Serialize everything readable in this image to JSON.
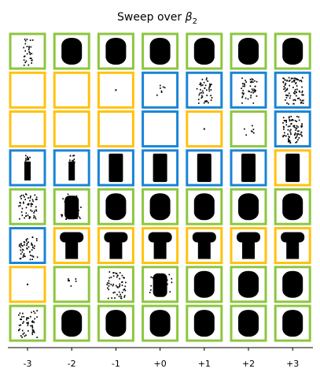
{
  "chart_data": {
    "type": "image-grid",
    "title": "Sweep over β₂",
    "title_prefix": "Sweep over ",
    "title_symbol": "β",
    "title_subscript": "2",
    "xlabel": "",
    "ylabel": "",
    "x_tick_labels": [
      "-3",
      "-2",
      "-1",
      "+0",
      "+1",
      "+2",
      "+3"
    ],
    "x": [
      -3,
      -2,
      -1,
      0,
      1,
      2,
      3
    ],
    "border_colors": {
      "green": "#8dc63f",
      "yellow": "#ffc20e",
      "blue": "#1a84d6"
    },
    "rows": [
      {
        "frames": [
          "green",
          "green",
          "green",
          "green",
          "green",
          "green",
          "green"
        ],
        "shapes": [
          "sparse-column",
          "dense-blob",
          "dense-blob",
          "dense-blob",
          "dense-blob",
          "dense-blob",
          "dense-blob"
        ]
      },
      {
        "frames": [
          "yellow",
          "yellow",
          "yellow",
          "blue",
          "blue",
          "blue",
          "blue"
        ],
        "shapes": [
          "empty",
          "empty",
          "dot",
          "scatter-small",
          "scatter-columns",
          "scatter-columns",
          "scatter-blob"
        ]
      },
      {
        "frames": [
          "yellow",
          "yellow",
          "yellow",
          "blue",
          "yellow",
          "green",
          "blue"
        ],
        "shapes": [
          "empty",
          "empty",
          "empty",
          "empty",
          "dot",
          "scatter-small",
          "scatter-blob"
        ]
      },
      {
        "frames": [
          "blue",
          "blue",
          "blue",
          "blue",
          "blue",
          "blue",
          "yellow"
        ],
        "shapes": [
          "thin-column",
          "thin-column",
          "column",
          "column",
          "column",
          "column",
          "column"
        ]
      },
      {
        "frames": [
          "green",
          "green",
          "green",
          "green",
          "green",
          "green",
          "green"
        ],
        "shapes": [
          "sparse-figure",
          "figure",
          "dense-blob",
          "dense-blob",
          "dense-blob",
          "dense-blob",
          "dense-blob"
        ]
      },
      {
        "frames": [
          "blue",
          "yellow",
          "yellow",
          "yellow",
          "yellow",
          "yellow",
          "yellow"
        ],
        "shapes": [
          "sparse-figure",
          "mushroom",
          "mushroom",
          "mushroom",
          "mushroom",
          "mushroom",
          "mushroom"
        ]
      },
      {
        "frames": [
          "yellow",
          "green",
          "green",
          "green",
          "green",
          "green",
          "green"
        ],
        "shapes": [
          "dot",
          "scatter-small",
          "sparse-figure",
          "figure",
          "dense-blob",
          "dense-blob",
          "dense-blob"
        ]
      },
      {
        "frames": [
          "green",
          "green",
          "green",
          "green",
          "green",
          "green",
          "green"
        ],
        "shapes": [
          "sparse-figure",
          "dense-blob",
          "dense-blob",
          "dense-blob",
          "dense-blob",
          "dense-blob",
          "dense-blob"
        ]
      }
    ]
  }
}
